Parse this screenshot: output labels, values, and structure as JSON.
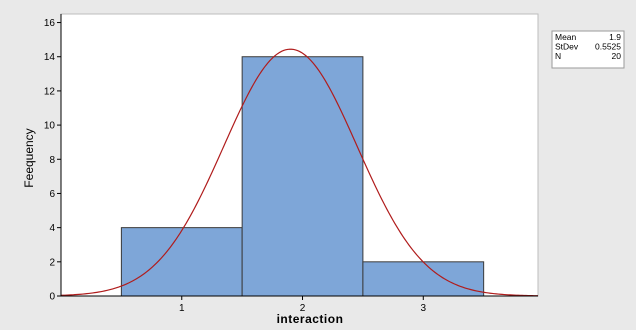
{
  "chart_data": {
    "type": "bar",
    "subtype": "histogram-with-normal-fit",
    "xlabel": "interaction",
    "ylabel": "Feequency",
    "xticks": [
      "1",
      "2",
      "3"
    ],
    "yticks": [
      0,
      2,
      4,
      6,
      8,
      10,
      12,
      14,
      16
    ],
    "ylim": [
      0,
      16.5
    ],
    "xlim": [
      0.0,
      3.95
    ],
    "bins": [
      {
        "start": 0.5,
        "end": 1.5,
        "count": 4
      },
      {
        "start": 1.5,
        "end": 2.5,
        "count": 14
      },
      {
        "start": 2.5,
        "end": 3.5,
        "count": 2
      }
    ],
    "fit": {
      "distribution": "normal",
      "mean": 1.9,
      "stdev": 0.5525,
      "n": 20
    },
    "stats_box": [
      {
        "label": "Mean",
        "value": "1.9"
      },
      {
        "label": "StDev",
        "value": "0.5525"
      },
      {
        "label": "N",
        "value": "20"
      }
    ],
    "grid": false,
    "legend_position": "top-right",
    "colors": {
      "background": "#e9e9e9",
      "plot_background": "#ffffff",
      "bar_fill": "#7ea6d8",
      "bar_stroke": "#3a3a3a",
      "fit_line": "#b01c1c",
      "axis": "#000000"
    }
  }
}
